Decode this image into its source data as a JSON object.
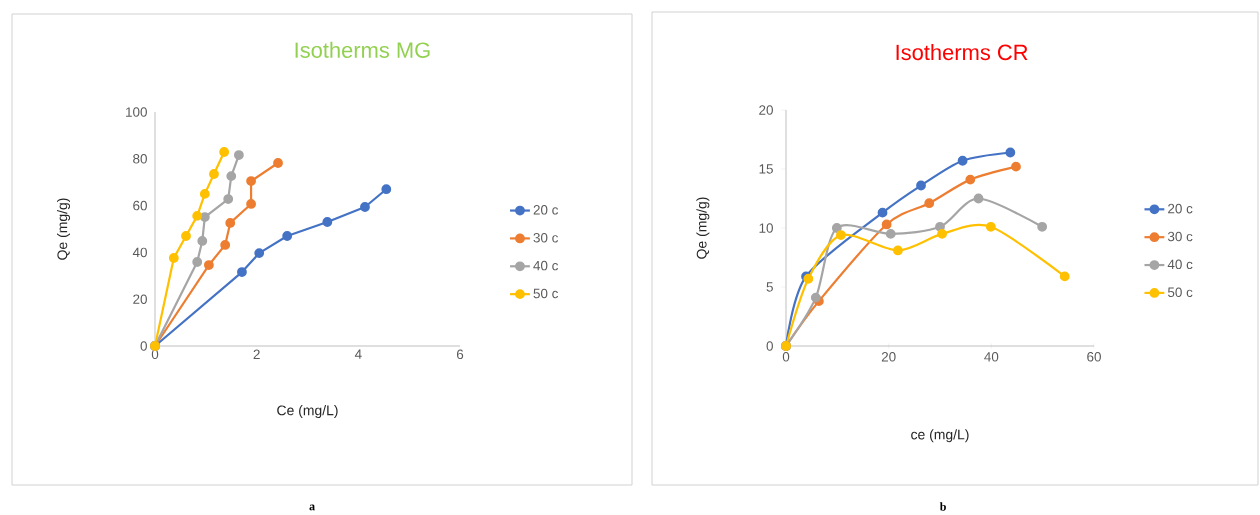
{
  "chart_data": [
    {
      "type": "line",
      "title": "Isotherms MG",
      "xlabel": "Ce (mg/L)",
      "ylabel": "Qe (mg/g)",
      "annotations": [
        "a"
      ],
      "xlim": [
        0,
        6
      ],
      "ylim": [
        0,
        100
      ],
      "xticks": [
        0,
        2,
        4,
        6
      ],
      "yticks": [
        0,
        20,
        40,
        60,
        80,
        100
      ],
      "legend": "right",
      "marker": "circle",
      "series": [
        {
          "name": "20 c",
          "color": "#4472c4",
          "x": [
            0,
            1.71,
            2.05,
            2.6,
            3.39,
            4.13,
            4.55
          ],
          "values": [
            0,
            31.6,
            39.7,
            47,
            53,
            59.4,
            67
          ]
        },
        {
          "name": "30 c",
          "color": "#ed7d31",
          "x": [
            0,
            1.06,
            1.38,
            1.48,
            1.89,
            1.89,
            2.42
          ],
          "values": [
            0,
            34.6,
            43.2,
            52.6,
            60.7,
            70.5,
            78.2
          ]
        },
        {
          "name": "40 c",
          "color": "#a5a5a5",
          "x": [
            0,
            0.83,
            0.93,
            0.98,
            1.44,
            1.5,
            1.65
          ],
          "values": [
            0,
            35.9,
            44.9,
            55.1,
            62.8,
            72.6,
            81.6
          ]
        },
        {
          "name": "50 c",
          "color": "#ffc000",
          "x": [
            0,
            0.37,
            0.61,
            0.83,
            0.98,
            1.16,
            1.36
          ],
          "values": [
            0,
            37.6,
            47,
            55.6,
            65,
            73.5,
            82.9
          ]
        }
      ]
    },
    {
      "type": "line",
      "title": "Isotherms CR",
      "xlabel": "ce (mg/L)",
      "ylabel": "Qe (mg/g)",
      "annotations": [
        "b"
      ],
      "xlim": [
        0,
        60
      ],
      "ylim": [
        0,
        20
      ],
      "xticks": [
        0,
        20,
        40,
        60
      ],
      "yticks": [
        0,
        5,
        10,
        15,
        20
      ],
      "legend": "right",
      "marker": "circle",
      "series": [
        {
          "name": "20 c",
          "color": "#4472c4",
          "x": [
            0,
            3.9,
            18.8,
            26.3,
            34.4,
            43.7
          ],
          "values": [
            0,
            5.9,
            11.3,
            13.6,
            15.7,
            16.4
          ]
        },
        {
          "name": "30 c",
          "color": "#ed7d31",
          "x": [
            0,
            6.4,
            10,
            19.6,
            27.9,
            35.9,
            44.8
          ],
          "values": [
            0,
            3.8,
            null,
            10.3,
            12.1,
            14.1,
            15.2
          ]
        },
        {
          "name": "40 c",
          "color": "#a5a5a5",
          "x": [
            0,
            5.8,
            9.9,
            20.4,
            30,
            37.5,
            49.9
          ],
          "values": [
            0,
            4.1,
            10,
            9.5,
            10.1,
            12.5,
            10.1
          ]
        },
        {
          "name": "50 c",
          "color": "#ffc000",
          "x": [
            0,
            4.35,
            10.7,
            21.8,
            30.4,
            39.9,
            54.3
          ],
          "values": [
            0,
            5.7,
            9.4,
            8.1,
            9.5,
            10.1,
            5.9
          ]
        }
      ]
    }
  ]
}
